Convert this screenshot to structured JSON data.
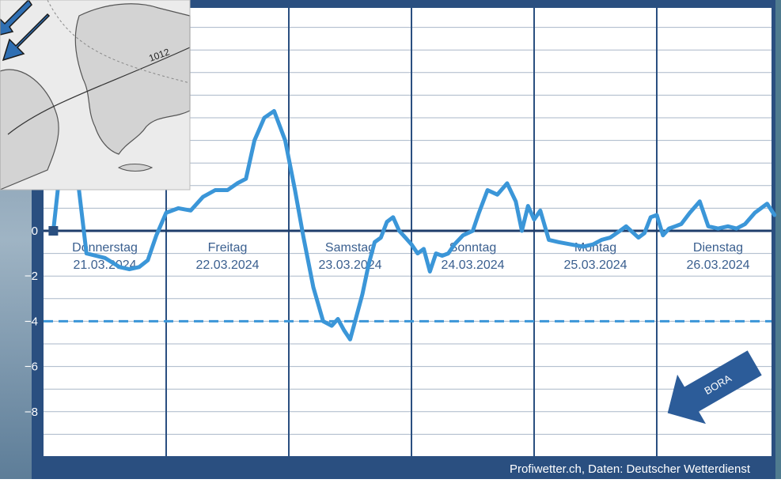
{
  "chart_data": {
    "type": "line",
    "title": "",
    "xlabel": "",
    "ylabel": "",
    "ylim": [
      -10,
      10
    ],
    "yticks": [
      -8,
      -6,
      -4,
      -2,
      0
    ],
    "ytick_labels": [
      "−8",
      "−6",
      "−4",
      "−2",
      "0"
    ],
    "grid": true,
    "threshold_line": -4,
    "days": [
      {
        "name": "Donnerstag",
        "date": "21.03.2024"
      },
      {
        "name": "Freitag",
        "date": "22.03.2024"
      },
      {
        "name": "Samstag",
        "date": "23.03.2024"
      },
      {
        "name": "Sonntag",
        "date": "24.03.2024"
      },
      {
        "name": "Montag",
        "date": "25.03.2024"
      },
      {
        "name": "Dienstag",
        "date": "26.03.2024"
      }
    ],
    "series": [
      {
        "color": "#3b96d8",
        "x": [
          0.08,
          0.15,
          0.23,
          0.35,
          0.5,
          0.62,
          0.7,
          0.78,
          0.85,
          0.92,
          1.0,
          1.1,
          1.2,
          1.3,
          1.4,
          1.5,
          1.58,
          1.65,
          1.72,
          1.8,
          1.88,
          1.97,
          2.05,
          2.12,
          2.2,
          2.28,
          2.35,
          2.4,
          2.45,
          2.5,
          2.55,
          2.6,
          2.65,
          2.7,
          2.75,
          2.8,
          2.85,
          2.9,
          2.95,
          3.0,
          3.05,
          3.1,
          3.15,
          3.2,
          3.25,
          3.3,
          3.35,
          3.42,
          3.5,
          3.55,
          3.62,
          3.7,
          3.78,
          3.85,
          3.9,
          3.95,
          4.0,
          4.05,
          4.12,
          4.2,
          4.3,
          4.4,
          4.48,
          4.55,
          4.62,
          4.7,
          4.75,
          4.85,
          4.9,
          4.95,
          5.0,
          5.05,
          5.1,
          5.15,
          5.2,
          5.27,
          5.35,
          5.42,
          5.5,
          5.58,
          5.65,
          5.72,
          5.8,
          5.9,
          5.96
        ],
        "values": [
          0.0,
          3.5,
          4.5,
          -1.0,
          -1.2,
          -1.6,
          -1.7,
          -1.6,
          -1.3,
          -0.2,
          0.8,
          1.0,
          0.9,
          1.5,
          1.8,
          1.8,
          2.1,
          2.3,
          4.0,
          5.0,
          5.3,
          4.0,
          1.8,
          -0.3,
          -2.5,
          -4.0,
          -4.2,
          -3.9,
          -4.4,
          -4.8,
          -3.8,
          -2.8,
          -1.5,
          -0.5,
          -0.3,
          0.4,
          0.6,
          0.0,
          -0.3,
          -0.6,
          -1.0,
          -0.8,
          -1.8,
          -1.0,
          -1.1,
          -1.0,
          -0.6,
          -0.2,
          0.0,
          0.8,
          1.8,
          1.6,
          2.1,
          1.3,
          0.0,
          1.1,
          0.5,
          0.9,
          -0.4,
          -0.5,
          -0.6,
          -0.7,
          -0.6,
          -0.4,
          -0.3,
          0.0,
          0.2,
          -0.3,
          -0.1,
          0.6,
          0.7,
          -0.2,
          0.1,
          0.2,
          0.3,
          0.8,
          1.3,
          0.2,
          0.1,
          0.2,
          0.1,
          0.3,
          0.8,
          1.2,
          0.7
        ]
      }
    ],
    "annotation": "BORA",
    "credit": "Profiwetter.ch, Daten: Deutscher Wetterdienst",
    "colors": {
      "frame": "#2a4f80",
      "grid": "#aab7c8",
      "zero_line": "#1f3e6b",
      "series": "#3b96d8",
      "threshold": "#3b96d8",
      "arrow": "#2c5c99",
      "inset_land": "#d6d6d6",
      "inset_sea": "#e9e9e9",
      "inset_arrow": "#2f6fb3"
    }
  }
}
